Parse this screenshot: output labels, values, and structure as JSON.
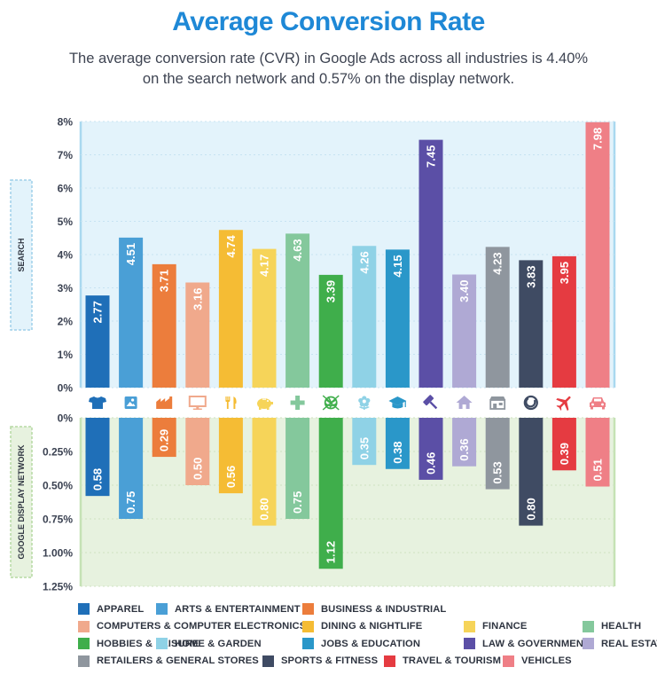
{
  "title": "Average Conversion Rate",
  "subtitle_line1": "The average conversion rate (CVR) in Google Ads across all industries is 4.40%",
  "subtitle_line2": "on the search network and 0.57% on the display network.",
  "chart_data": {
    "type": "bar",
    "title": "Average Conversion Rate",
    "categories": [
      "APPAREL",
      "ARTS & ENTERTAINMENT",
      "BUSINESS & INDUSTRIAL",
      "COMPUTERS & COMPUTER ELECTRONICS",
      "DINING & NIGHTLIFE",
      "FINANCE",
      "HEALTH",
      "HOBBIES & LEISURE",
      "HOME & GARDEN",
      "JOBS & EDUCATION",
      "LAW & GOVERNMENT",
      "REAL ESTATE",
      "RETAILERS & GENERAL STORES",
      "SPORTS & FITNESS",
      "TRAVEL & TOURISM",
      "VEHICLES"
    ],
    "colors": [
      "#1f6fb8",
      "#4a9fd6",
      "#ec7d3c",
      "#f0a98c",
      "#f5bc34",
      "#f6d459",
      "#84c89c",
      "#3fae4b",
      "#8fd2e6",
      "#2a97c9",
      "#5b4fa6",
      "#afa9d4",
      "#8f969e",
      "#3f4b63",
      "#e53b41",
      "#ef7f86"
    ],
    "icons": [
      "tshirt-icon",
      "picture-icon",
      "factory-icon",
      "monitor-icon",
      "fork-knife-icon",
      "piggy-bank-icon",
      "medical-cross-icon",
      "yarn-ball-icon",
      "flower-icon",
      "graduation-cap-icon",
      "gavel-icon",
      "house-icon",
      "storefront-icon",
      "fitness-ring-icon",
      "airplane-icon",
      "car-icon"
    ],
    "series": [
      {
        "name": "SEARCH",
        "values": [
          2.77,
          4.51,
          3.71,
          3.16,
          4.74,
          4.17,
          4.63,
          3.39,
          4.26,
          4.15,
          7.45,
          3.4,
          4.23,
          3.83,
          3.95,
          7.98
        ],
        "labels": [
          "2.77",
          "4.51",
          "3.71",
          "3.16",
          "4.74",
          "4.17",
          "4.63",
          "3.39",
          "4.26",
          "4.15",
          "7.45",
          "3.40",
          "4.23",
          "3.83",
          "3.95",
          "7.98"
        ]
      },
      {
        "name": "GOOGLE DISPLAY NETWORK",
        "values": [
          0.58,
          0.75,
          0.29,
          0.5,
          0.56,
          0.8,
          0.75,
          1.12,
          0.35,
          0.38,
          0.46,
          0.36,
          0.53,
          0.8,
          0.39,
          0.51
        ],
        "labels": [
          "0.58",
          "0.75",
          "0.29",
          "0.50",
          "0.56",
          "0.80",
          "0.75",
          "1.12",
          "0.35",
          "0.38",
          "0.46",
          "0.36",
          "0.53",
          "0.80",
          "0.39",
          "0.51"
        ]
      }
    ],
    "search_axis": {
      "ylim": [
        0,
        8
      ],
      "ticks": [
        8,
        7,
        6,
        5,
        4,
        3,
        2,
        1,
        0
      ],
      "tick_labels": [
        "8%",
        "7%",
        "6%",
        "5%",
        "4%",
        "3%",
        "2%",
        "1%",
        "0%"
      ]
    },
    "display_axis": {
      "ylim": [
        0,
        1.25
      ],
      "ticks": [
        0,
        0.25,
        0.5,
        0.75,
        1.0,
        1.25
      ],
      "tick_labels": [
        "0%",
        "0.25%",
        "0.50%",
        "0.75%",
        "1.00%",
        "1.25%"
      ]
    },
    "panel_colors": {
      "search": "#e3f3fb",
      "display": "#e7f2df",
      "search_border": "#a9d8ef",
      "display_border": "#c5e2b5"
    }
  },
  "legend": [
    [
      "APPAREL",
      "ARTS & ENTERTAINMENT",
      "BUSINESS & INDUSTRIAL"
    ],
    [
      "COMPUTERS & COMPUTER ELECTRONICS",
      "DINING & NIGHTLIFE",
      "FINANCE",
      "HEALTH"
    ],
    [
      "HOBBIES & LEISURE",
      "HOME & GARDEN",
      "JOBS & EDUCATION",
      "LAW & GOVERNMENT",
      "REAL ESTATE"
    ],
    [
      "RETAILERS & GENERAL STORES",
      "SPORTS & FITNESS",
      "TRAVEL & TOURISM",
      "VEHICLES"
    ]
  ]
}
